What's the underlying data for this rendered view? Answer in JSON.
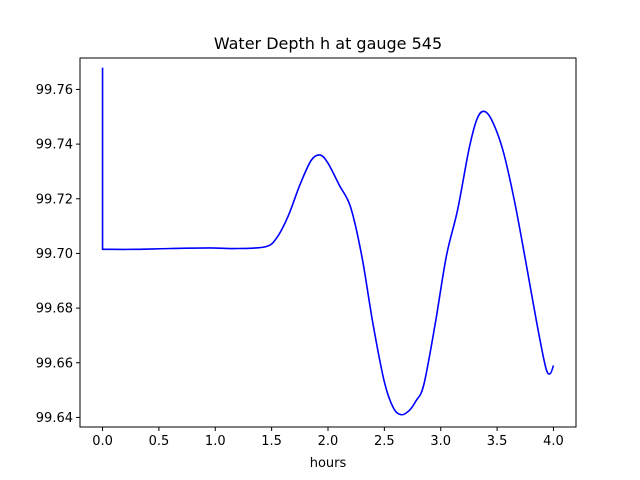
{
  "chart_data": {
    "type": "line",
    "title": "Water Depth h at gauge 545",
    "xlabel": "hours",
    "ylabel": "",
    "xlim": [
      -0.2,
      4.2
    ],
    "ylim": [
      99.6365,
      99.7715
    ],
    "xticks": [
      0.0,
      0.5,
      1.0,
      1.5,
      2.0,
      2.5,
      3.0,
      3.5,
      4.0
    ],
    "xtick_labels": [
      "0.0",
      "0.5",
      "1.0",
      "1.5",
      "2.0",
      "2.5",
      "3.0",
      "3.5",
      "4.0"
    ],
    "yticks": [
      99.64,
      99.66,
      99.68,
      99.7,
      99.72,
      99.74,
      99.76
    ],
    "ytick_labels": [
      "99.64",
      "99.66",
      "99.68",
      "99.70",
      "99.72",
      "99.74",
      "99.76"
    ],
    "grid": false,
    "series": [
      {
        "color": "#0000ff",
        "x": [
          0.0,
          0.0,
          0.3,
          0.6,
          0.95,
          1.2,
          1.45,
          1.55,
          1.65,
          1.75,
          1.85,
          1.93,
          2.0,
          2.1,
          2.2,
          2.3,
          2.4,
          2.5,
          2.58,
          2.65,
          2.72,
          2.78,
          2.85,
          2.95,
          3.05,
          3.15,
          3.25,
          3.32,
          3.38,
          3.45,
          3.55,
          3.65,
          3.75,
          3.85,
          3.93,
          3.97,
          4.0
        ],
        "y": [
          99.768,
          99.7015,
          99.7015,
          99.7018,
          99.702,
          99.7018,
          99.7025,
          99.706,
          99.714,
          99.725,
          99.734,
          99.736,
          99.733,
          99.725,
          99.717,
          99.699,
          99.674,
          99.653,
          99.6435,
          99.641,
          99.6425,
          99.646,
          99.652,
          99.674,
          99.699,
          99.716,
          99.738,
          99.749,
          99.752,
          99.749,
          99.738,
          99.72,
          99.698,
          99.675,
          99.6585,
          99.656,
          99.659
        ]
      }
    ]
  }
}
